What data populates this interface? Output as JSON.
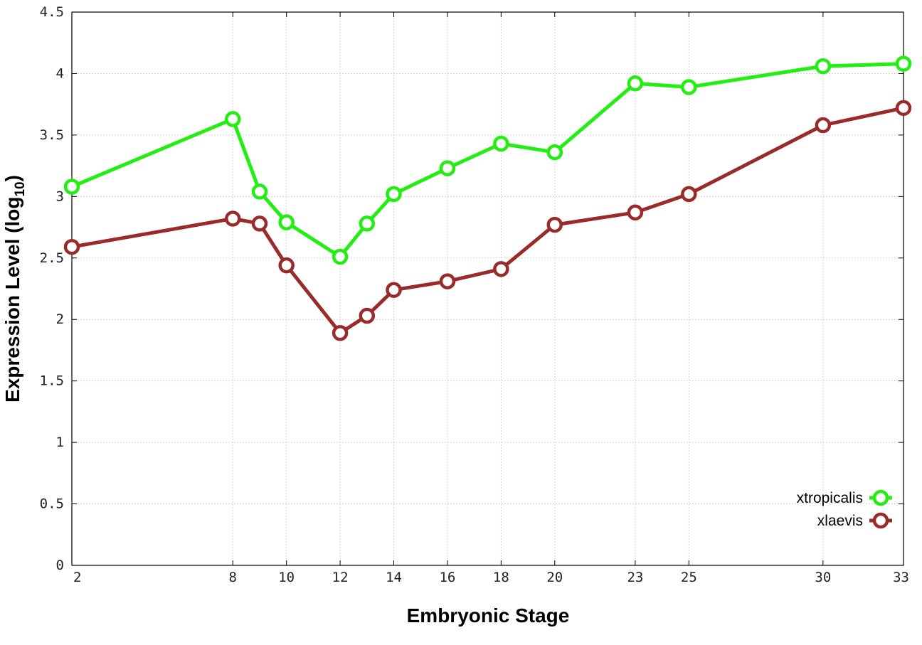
{
  "chart_data": {
    "type": "line",
    "title": "",
    "xlabel": "Embryonic Stage",
    "ylabel_main": "Expression Level (log",
    "ylabel_sub": "10",
    "ylabel_close": ")",
    "xlim": [
      2,
      33
    ],
    "ylim": [
      0,
      4.5
    ],
    "grid": true,
    "legend_position": "bottom-right",
    "x": [
      2,
      8,
      9,
      10,
      12,
      13,
      14,
      16,
      18,
      20,
      23,
      25,
      30,
      33
    ],
    "x_tick_labels": [
      "2",
      "8",
      "10",
      "12",
      "14",
      "16",
      "18",
      "20",
      "23",
      "25",
      "30",
      "33"
    ],
    "x_ticks": [
      2,
      8,
      10,
      12,
      14,
      16,
      18,
      20,
      23,
      25,
      30,
      33
    ],
    "y_tick_labels": [
      "0",
      "0.5",
      "1",
      "1.5",
      "2",
      "2.5",
      "3",
      "3.5",
      "4",
      "4.5"
    ],
    "y_ticks": [
      0,
      0.5,
      1,
      1.5,
      2,
      2.5,
      3,
      3.5,
      4,
      4.5
    ],
    "series": [
      {
        "name": "xtropicalis",
        "color": "#22ee11",
        "values": [
          3.08,
          3.63,
          3.04,
          2.79,
          2.51,
          2.78,
          3.02,
          3.23,
          3.43,
          3.36,
          3.92,
          3.89,
          4.06,
          4.08
        ]
      },
      {
        "name": "xlaevis",
        "color": "#992b2b",
        "values": [
          2.59,
          2.82,
          2.78,
          2.44,
          1.89,
          2.03,
          2.24,
          2.31,
          2.41,
          2.77,
          2.87,
          3.02,
          3.58,
          3.72
        ]
      }
    ]
  }
}
